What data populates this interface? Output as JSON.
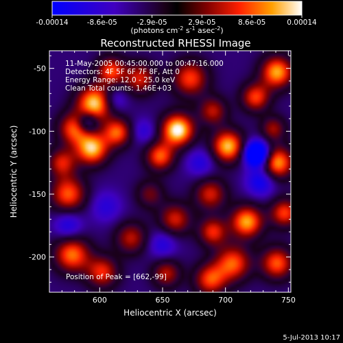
{
  "chart_data": {
    "type": "heatmap",
    "title": "Reconstructed RHESSI Image",
    "xlabel": "Heliocentric X (arcsec)",
    "ylabel": "Heliocentric Y (arcsec)",
    "xlim": [
      560,
      752
    ],
    "ylim": [
      -228,
      -36
    ],
    "x_ticks": [
      "600",
      "650",
      "700",
      "750"
    ],
    "x_tick_values": [
      600,
      650,
      700,
      750
    ],
    "y_ticks": [
      "-50",
      "-100",
      "-150",
      "-200"
    ],
    "y_tick_values": [
      -50,
      -100,
      -150,
      -200
    ],
    "colorbar": {
      "tick_labels": [
        "-0.00014",
        "-8.6e-05",
        "-2.9e-05",
        "2.9e-05",
        "8.6e-05",
        "0.00014"
      ],
      "unit_main": "(photons cm",
      "unit_exp1": "-2",
      "unit_s": " s",
      "unit_exp2": "-1",
      "unit_asec": " asec",
      "unit_exp3": "-2",
      "unit_close": ")",
      "vmin": -0.00014,
      "vmax": 0.00014
    },
    "annotations": [
      "11-May-2005 00:45:00.000 to 00:47:16.000",
      "Detectors: 4F 5F 6F 7F 8F, Att 0",
      "Energy Range: 12.0 - 25.0 keV",
      "Clean    Total counts: 1.46E+03"
    ],
    "peak_label": "Position of Peak = [662,-99]",
    "peak": {
      "x": 662,
      "y": -99
    },
    "blobs": [
      {
        "x": 596,
        "y": -78,
        "amp": 1.0,
        "s": 10
      },
      {
        "x": 609,
        "y": -52,
        "amp": 0.7,
        "s": 8
      },
      {
        "x": 580,
        "y": -98,
        "amp": 0.75,
        "s": 9
      },
      {
        "x": 614,
        "y": -101,
        "amp": 0.75,
        "s": 8
      },
      {
        "x": 594,
        "y": -114,
        "amp": 0.95,
        "s": 9
      },
      {
        "x": 575,
        "y": -150,
        "amp": 0.75,
        "s": 10
      },
      {
        "x": 570,
        "y": -125,
        "amp": 0.6,
        "s": 8
      },
      {
        "x": 578,
        "y": -198,
        "amp": 0.8,
        "s": 10
      },
      {
        "x": 602,
        "y": -212,
        "amp": 0.65,
        "s": 9
      },
      {
        "x": 632,
        "y": -58,
        "amp": 0.6,
        "s": 9
      },
      {
        "x": 662,
        "y": -99,
        "amp": 1.1,
        "s": 9
      },
      {
        "x": 648,
        "y": -120,
        "amp": 0.75,
        "s": 8
      },
      {
        "x": 672,
        "y": -58,
        "amp": 0.7,
        "s": 10
      },
      {
        "x": 690,
        "y": -84,
        "amp": 0.55,
        "s": 8
      },
      {
        "x": 702,
        "y": -112,
        "amp": 0.95,
        "s": 9
      },
      {
        "x": 741,
        "y": -53,
        "amp": 0.9,
        "s": 9
      },
      {
        "x": 724,
        "y": -73,
        "amp": 0.7,
        "s": 8
      },
      {
        "x": 741,
        "y": -125,
        "amp": 0.9,
        "s": 9
      },
      {
        "x": 738,
        "y": -98,
        "amp": 0.5,
        "s": 7
      },
      {
        "x": 688,
        "y": -150,
        "amp": 0.6,
        "s": 9
      },
      {
        "x": 660,
        "y": -170,
        "amp": 0.6,
        "s": 9
      },
      {
        "x": 640,
        "y": -150,
        "amp": 0.4,
        "s": 8
      },
      {
        "x": 625,
        "y": -185,
        "amp": 0.55,
        "s": 9
      },
      {
        "x": 690,
        "y": -180,
        "amp": 0.65,
        "s": 8
      },
      {
        "x": 717,
        "y": -172,
        "amp": 0.9,
        "s": 9
      },
      {
        "x": 747,
        "y": -165,
        "amp": 0.7,
        "s": 8
      },
      {
        "x": 706,
        "y": -205,
        "amp": 0.75,
        "s": 10
      },
      {
        "x": 688,
        "y": -218,
        "amp": 0.7,
        "s": 9
      },
      {
        "x": 741,
        "y": -205,
        "amp": 0.75,
        "s": 9
      },
      {
        "x": 653,
        "y": -213,
        "amp": 0.55,
        "s": 8
      },
      {
        "x": 725,
        "y": -118,
        "amp": -1.2,
        "s": 7
      },
      {
        "x": 728,
        "y": -140,
        "amp": -0.5,
        "s": 8
      },
      {
        "x": 590,
        "y": -93,
        "amp": -0.6,
        "s": 6
      },
      {
        "x": 575,
        "y": -175,
        "amp": -0.4,
        "s": 8
      },
      {
        "x": 612,
        "y": -75,
        "amp": -0.35,
        "s": 7
      },
      {
        "x": 635,
        "y": -100,
        "amp": -0.3,
        "s": 7
      },
      {
        "x": 680,
        "y": -125,
        "amp": -0.35,
        "s": 8
      },
      {
        "x": 650,
        "y": -190,
        "amp": -0.35,
        "s": 8
      },
      {
        "x": 605,
        "y": -160,
        "amp": -0.3,
        "s": 9
      }
    ]
  },
  "footer": {
    "date": "5-Jul-2013 10:17"
  }
}
